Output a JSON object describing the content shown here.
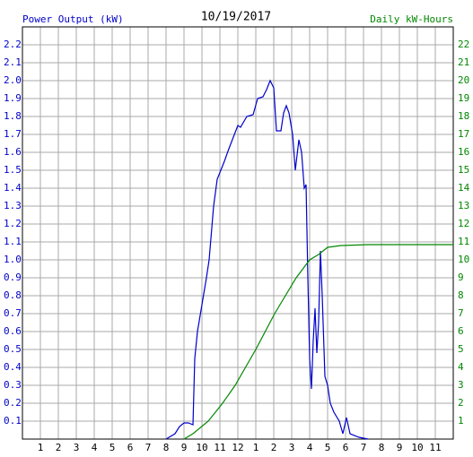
{
  "chart_data": {
    "type": "line",
    "title": "10/19/2017",
    "y_label": "Power Output (kW)",
    "y2_label": "Daily kW-Hours",
    "xlim": [
      0,
      24
    ],
    "xticks": [
      1,
      2,
      3,
      4,
      5,
      6,
      7,
      8,
      9,
      10,
      11,
      12,
      {
        "value": 13,
        "label": "1"
      },
      {
        "value": 14,
        "label": "2"
      },
      {
        "value": 15,
        "label": "3"
      },
      {
        "value": 16,
        "label": "4"
      },
      {
        "value": 17,
        "label": "5"
      },
      {
        "value": 18,
        "label": "6"
      },
      {
        "value": 19,
        "label": "7"
      },
      {
        "value": 20,
        "label": "8"
      },
      {
        "value": 21,
        "label": "9"
      },
      {
        "value": 22,
        "label": "10"
      },
      {
        "value": 23,
        "label": "11"
      }
    ],
    "ylim": [
      0,
      2.3
    ],
    "yticks": [
      0.1,
      0.2,
      0.3,
      0.4,
      0.5,
      0.6,
      0.7,
      0.8,
      0.9,
      {
        "value": 1,
        "label": "1.0"
      },
      1.1,
      1.2,
      1.3,
      1.4,
      1.5,
      1.6,
      1.7,
      1.8,
      1.9,
      {
        "value": 2,
        "label": "2.0"
      },
      2.1,
      2.2
    ],
    "y2lim": [
      0,
      23
    ],
    "y2ticks": [
      1,
      2,
      3,
      4,
      5,
      6,
      7,
      8,
      9,
      10,
      11,
      12,
      13,
      14,
      15,
      16,
      17,
      18,
      19,
      20,
      21,
      22
    ],
    "grid": true,
    "series": [
      {
        "name": "Power Output (kW)",
        "color": "#0000cc",
        "axis": "y",
        "x": [
          8.0,
          8.5,
          8.75,
          9.0,
          9.25,
          9.5,
          9.6,
          9.75,
          10.0,
          10.25,
          10.4,
          10.65,
          10.85,
          11.25,
          11.5,
          12.0,
          12.15,
          12.5,
          12.85,
          13.1,
          13.4,
          13.6,
          13.8,
          14.0,
          14.15,
          14.4,
          14.55,
          14.7,
          14.85,
          15.05,
          15.2,
          15.4,
          15.55,
          15.7,
          15.8,
          15.9,
          16.0,
          16.1,
          16.2,
          16.3,
          16.4,
          16.5,
          16.6,
          16.7,
          16.85,
          17.0,
          17.15,
          17.35,
          17.65,
          17.85,
          18.05,
          18.25,
          18.75,
          19.25
        ],
        "values": [
          0,
          0.03,
          0.07,
          0.09,
          0.09,
          0.08,
          0.45,
          0.6,
          0.75,
          0.9,
          1.0,
          1.3,
          1.45,
          1.55,
          1.62,
          1.75,
          1.74,
          1.8,
          1.81,
          1.9,
          1.91,
          1.95,
          2.0,
          1.96,
          1.72,
          1.72,
          1.82,
          1.86,
          1.82,
          1.7,
          1.5,
          1.67,
          1.6,
          1.4,
          1.42,
          0.9,
          0.45,
          0.28,
          0.55,
          0.73,
          0.48,
          0.65,
          1.05,
          0.8,
          0.35,
          0.3,
          0.2,
          0.15,
          0.1,
          0.03,
          0.12,
          0.03,
          0.01,
          0
        ]
      },
      {
        "name": "Daily kW-Hours",
        "color": "#008800",
        "axis": "y2",
        "x": [
          9.0,
          9.5,
          10.35,
          11.15,
          11.85,
          13.0,
          14.05,
          15.25,
          16.0,
          16.5,
          17.0,
          17.75,
          19.25,
          24
        ],
        "values": [
          0,
          0.3,
          1,
          2,
          3,
          5,
          7,
          9,
          10,
          10.3,
          10.7,
          10.8,
          10.85,
          10.85
        ]
      }
    ]
  }
}
